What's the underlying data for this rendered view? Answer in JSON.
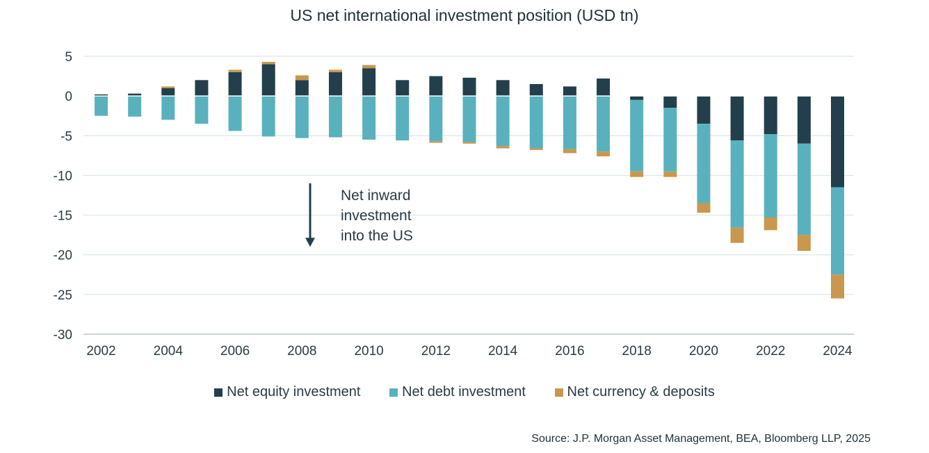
{
  "chart_data": {
    "type": "bar",
    "stacked": true,
    "title": "US net international investment position (USD tn)",
    "xlabel": "",
    "ylabel": "",
    "ylim": [
      -30,
      5
    ],
    "yticks": [
      5,
      0,
      -5,
      -10,
      -15,
      -20,
      -25,
      -30
    ],
    "x_tick_labels": [
      "2002",
      "2004",
      "2006",
      "2008",
      "2010",
      "2012",
      "2014",
      "2016",
      "2018",
      "2020",
      "2022",
      "2024"
    ],
    "categories": [
      "2002",
      "2003",
      "2004",
      "2005",
      "2006",
      "2007",
      "2008",
      "2009",
      "2010",
      "2011",
      "2012",
      "2013",
      "2014",
      "2015",
      "2016",
      "2017",
      "2018",
      "2019",
      "2020",
      "2021",
      "2022",
      "2023",
      "2024"
    ],
    "series": [
      {
        "name": "Net equity investment",
        "color": "#233f4b",
        "values": [
          0.2,
          0.3,
          1.0,
          2.0,
          3.0,
          4.0,
          2.0,
          3.0,
          3.5,
          2.0,
          2.5,
          2.3,
          2.0,
          1.5,
          1.2,
          2.2,
          -0.5,
          -1.5,
          -3.5,
          -5.6,
          -4.8,
          -6.0,
          -11.5
        ]
      },
      {
        "name": "Net debt investment",
        "color": "#5ab1be",
        "values": [
          -2.5,
          -2.6,
          -3.0,
          -3.5,
          -4.4,
          -5.1,
          -5.3,
          -5.2,
          -5.5,
          -5.6,
          -5.7,
          -5.8,
          -6.3,
          -6.6,
          -6.7,
          -7.0,
          -9.0,
          -8.0,
          -10.0,
          -11.0,
          -10.5,
          -11.5,
          -11.0
        ]
      },
      {
        "name": "Net currency & deposits",
        "color": "#c9974e",
        "values": [
          0.0,
          0.0,
          0.2,
          0.0,
          0.3,
          0.3,
          0.6,
          0.3,
          0.4,
          0.0,
          -0.2,
          -0.2,
          -0.3,
          -0.2,
          -0.5,
          -0.6,
          -0.7,
          -0.7,
          -1.2,
          -1.9,
          -1.6,
          -2.0,
          -3.0
        ]
      }
    ],
    "annotation": {
      "lines": [
        "Net inward",
        "investment",
        "into the US"
      ],
      "arrow_from": -11,
      "arrow_to": -19
    },
    "grid": true,
    "legend_position": "bottom"
  },
  "source": "Source: J.P. Morgan Asset Management, BEA, Bloomberg LLP, 2025"
}
